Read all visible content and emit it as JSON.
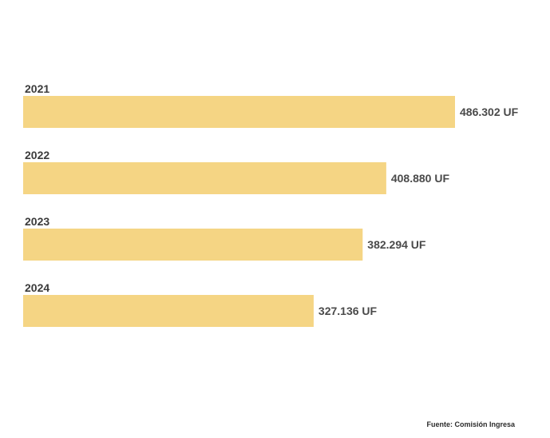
{
  "chart_data": {
    "type": "bar",
    "orientation": "horizontal",
    "categories": [
      "2021",
      "2022",
      "2023",
      "2024"
    ],
    "values": [
      486302,
      408880,
      382294,
      327136
    ],
    "value_labels": [
      "486.302 UF",
      "408.880 UF",
      "382.294 UF",
      "327.136 UF"
    ],
    "unit": "UF",
    "xlim": [
      0,
      486302
    ],
    "grid": false,
    "legend": "none",
    "bar_color": "#f5d584"
  },
  "source": "Fuente: Comisión Ingresa"
}
